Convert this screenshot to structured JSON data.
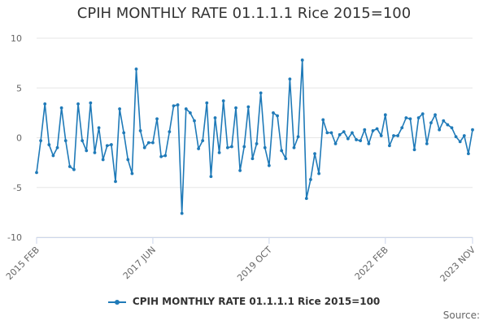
{
  "colors": {
    "series": "#1f7ab8",
    "grid": "#e6e6e6",
    "axis": "#ccd6eb"
  },
  "source_label": "Source:",
  "chart_data": {
    "type": "line",
    "title": "CPIH MONTHLY RATE 01.1.1.1 Rice 2015=100",
    "xlabel": "",
    "ylabel": "",
    "ylim": [
      -10,
      10
    ],
    "yticks": [
      10,
      5,
      0,
      -5,
      -10
    ],
    "legend": "bottom-center",
    "grid": true,
    "x_tick_labels": [
      {
        "label": "2015 FEB",
        "index": 0
      },
      {
        "label": "2017 JUN",
        "index": 28
      },
      {
        "label": "2019 OCT",
        "index": 56
      },
      {
        "label": "2022 FEB",
        "index": 84
      },
      {
        "label": "2023 NOV",
        "index": 105
      }
    ],
    "x_start": "2015 FEB",
    "x_end": "2023 NOV",
    "series": [
      {
        "name": "CPIH MONTHLY RATE 01.1.1.1 Rice 2015=100",
        "values": [
          -3.5,
          -0.3,
          3.4,
          -0.7,
          -1.8,
          -1.0,
          3.0,
          -0.3,
          -2.9,
          -3.2,
          3.4,
          -0.3,
          -1.3,
          3.5,
          -1.5,
          1.0,
          -2.2,
          -0.8,
          -0.7,
          -4.4,
          2.9,
          0.5,
          -2.2,
          -3.6,
          6.9,
          0.7,
          -1.0,
          -0.5,
          -0.5,
          1.9,
          -1.9,
          -1.8,
          0.6,
          3.2,
          3.3,
          -7.6,
          2.9,
          2.5,
          1.7,
          -1.1,
          -0.3,
          3.5,
          -3.9,
          2.0,
          -1.5,
          3.7,
          -1.0,
          -0.9,
          3.0,
          -3.3,
          -0.9,
          3.1,
          -2.1,
          -0.6,
          4.5,
          -1.0,
          -2.8,
          2.5,
          2.2,
          -1.3,
          -2.1,
          5.9,
          -1.0,
          0.1,
          7.8,
          -6.1,
          -4.2,
          -1.6,
          -3.6,
          1.8,
          0.5,
          0.5,
          -0.6,
          0.3,
          0.6,
          -0.1,
          0.5,
          -0.2,
          -0.3,
          0.8,
          -0.6,
          0.7,
          0.9,
          0.2,
          2.3,
          -0.8,
          0.2,
          0.2,
          1.0,
          2.0,
          1.9,
          -1.2,
          2.0,
          2.4,
          -0.6,
          1.5,
          2.3,
          0.8,
          1.7,
          1.3,
          1.0,
          0.1,
          -0.4,
          0.2,
          -1.6,
          0.8
        ]
      }
    ]
  }
}
